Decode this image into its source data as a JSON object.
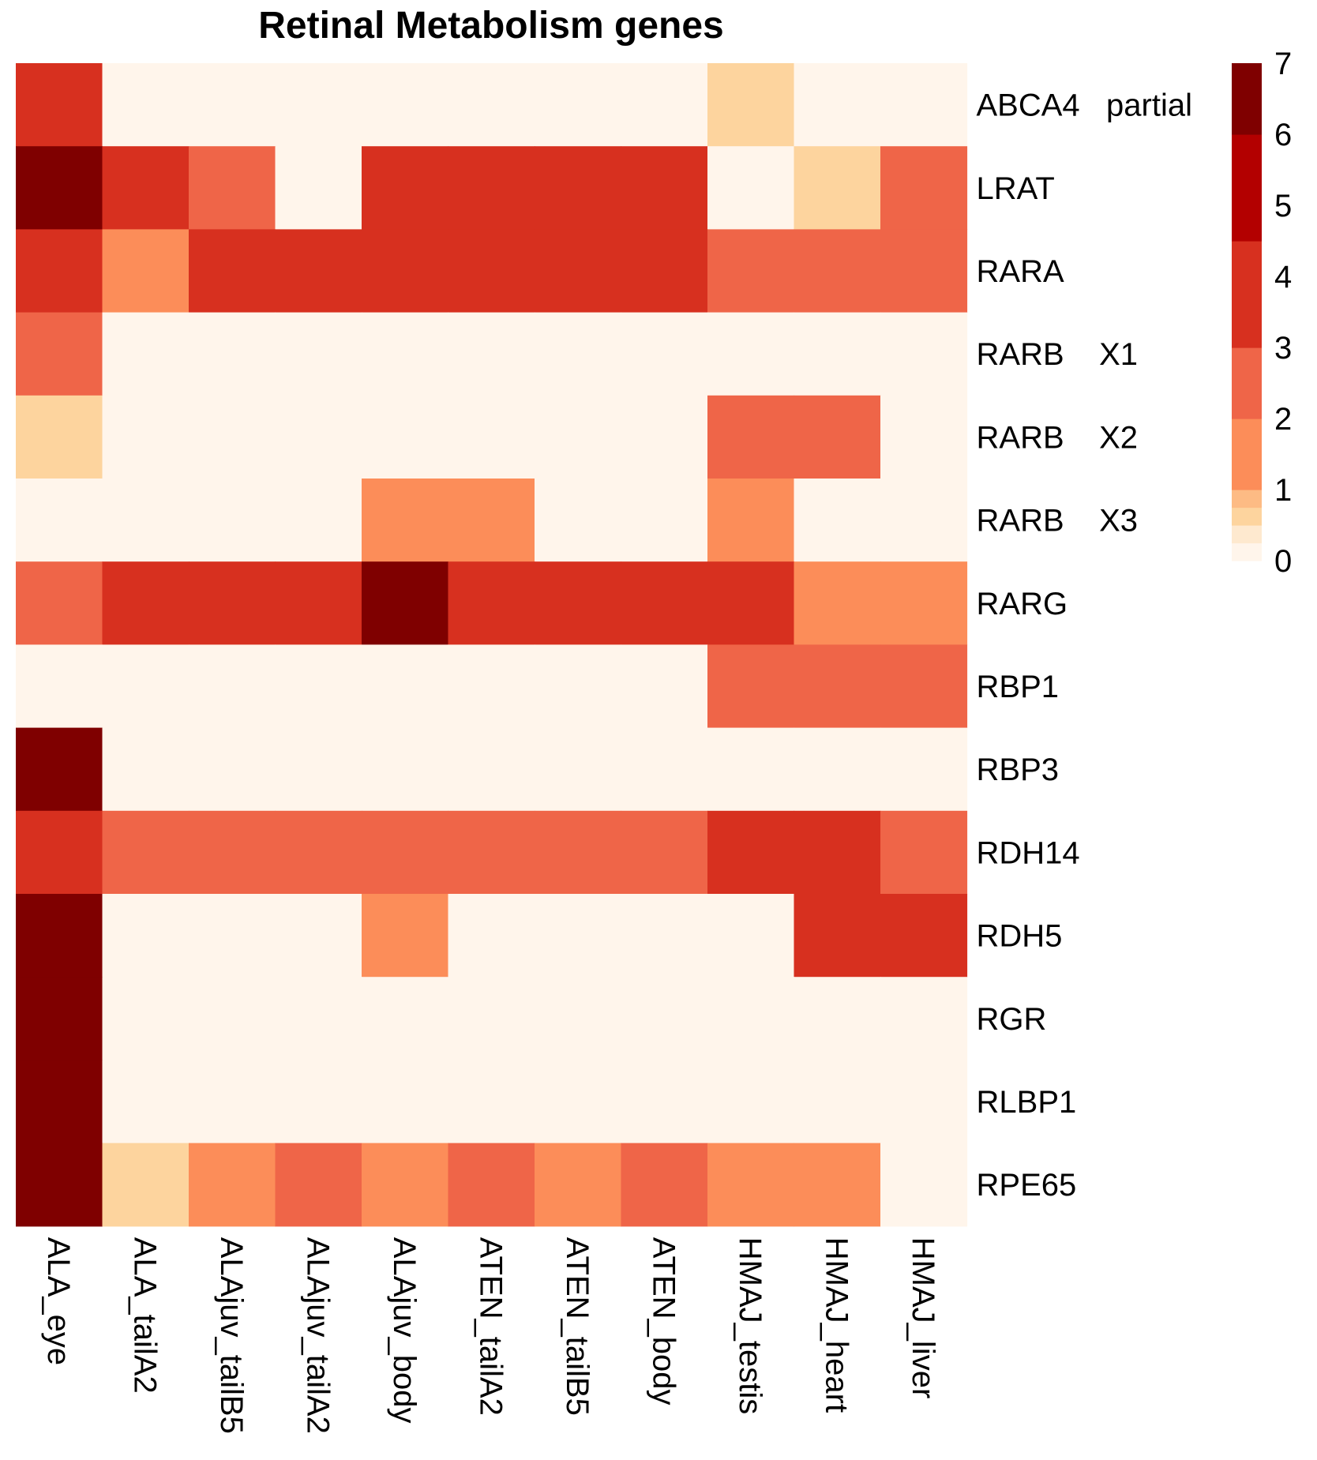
{
  "chart_data": {
    "type": "heatmap",
    "title": "Retinal Metabolism genes",
    "rows": [
      "ABCA4   partial",
      "LRAT",
      "RARA",
      "RARB    X1",
      "RARB    X2",
      "RARB    X3",
      "RARG",
      "RBP1",
      "RBP3",
      "RDH14",
      "RDH5",
      "RGR",
      "RLBP1",
      "RPE65"
    ],
    "columns": [
      "ALA_eye",
      "ALA_tailA2",
      "ALAjuv_tailB5",
      "ALAjuv_tailA2",
      "ALAjuv_body",
      "ATEN_tailA2",
      "ATEN_tailB5",
      "ATEN_body",
      "HMAJ_testis",
      "HMAJ_heart",
      "HMAJ_liver"
    ],
    "values": [
      [
        4,
        0,
        0,
        0,
        0,
        0,
        0,
        0,
        0.5,
        0,
        0
      ],
      [
        7,
        4,
        2,
        0,
        3,
        4,
        3,
        3,
        0,
        0.5,
        2
      ],
      [
        3,
        1.5,
        4,
        4,
        4,
        3,
        3,
        4,
        2,
        2,
        2
      ],
      [
        2,
        0,
        0,
        0,
        0,
        0,
        0,
        0,
        0,
        0,
        0
      ],
      [
        0.5,
        0,
        0,
        0,
        0,
        0,
        0,
        0,
        2,
        2,
        0
      ],
      [
        0,
        0,
        0,
        0,
        1,
        1,
        0,
        0,
        1,
        0,
        0
      ],
      [
        2,
        3,
        4,
        4,
        6,
        4,
        4,
        4,
        4,
        1.5,
        1
      ],
      [
        0,
        0,
        0,
        0,
        0,
        0,
        0,
        0,
        2,
        2,
        2
      ],
      [
        6,
        0,
        0,
        0,
        0,
        0,
        0,
        0,
        0,
        0,
        0
      ],
      [
        4,
        2,
        2,
        2,
        2,
        2,
        2,
        2,
        3,
        3,
        2
      ],
      [
        7,
        0,
        0,
        0,
        1,
        0,
        0,
        0,
        0,
        3,
        3
      ],
      [
        7,
        0,
        0,
        0,
        0,
        0,
        0,
        0,
        0,
        0,
        0
      ],
      [
        7,
        0,
        0,
        0,
        0,
        0,
        0,
        0,
        0,
        0,
        0
      ],
      [
        7,
        0.5,
        1.5,
        2,
        1.5,
        2,
        1.5,
        2,
        1,
        1.5,
        0
      ]
    ],
    "color_scale": {
      "breaks": [
        {
          "min": 0,
          "max": 0.25,
          "color": "#FFF5EB"
        },
        {
          "min": 0.25,
          "max": 0.5,
          "color": "#FEE9CF"
        },
        {
          "min": 0.5,
          "max": 0.75,
          "color": "#FDD49E"
        },
        {
          "min": 0.75,
          "max": 1,
          "color": "#FDBB84"
        },
        {
          "min": 1,
          "max": 2,
          "color": "#FC8D59"
        },
        {
          "min": 2,
          "max": 3,
          "color": "#EF6548"
        },
        {
          "min": 3,
          "max": 4.5,
          "color": "#D7301F"
        },
        {
          "min": 4.5,
          "max": 6,
          "color": "#B30000"
        },
        {
          "min": 6,
          "max": 7,
          "color": "#7F0000"
        }
      ],
      "ticks": [
        0,
        1,
        2,
        3,
        4,
        5,
        6,
        7
      ],
      "range": [
        0,
        7
      ]
    },
    "legend_position": "right",
    "grid": false
  }
}
